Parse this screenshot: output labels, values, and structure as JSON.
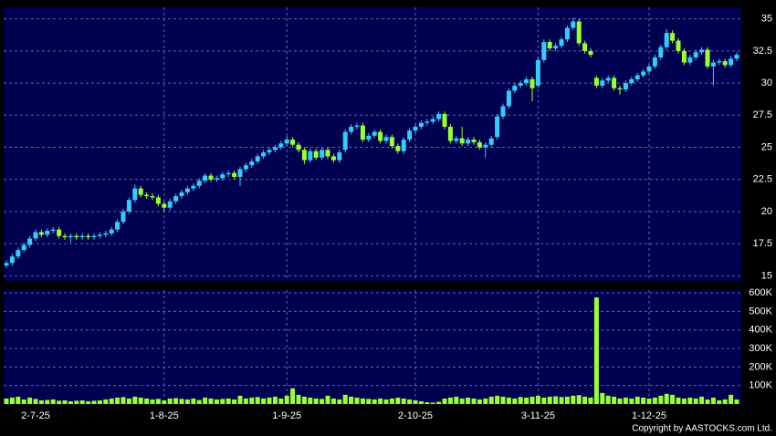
{
  "chart_data": [
    {
      "type": "candlestick",
      "categories": [
        null,
        null,
        null,
        null,
        null,
        "2-7-25",
        null,
        null,
        null,
        null,
        null,
        null,
        null,
        null,
        null,
        null,
        null,
        null,
        null,
        null,
        null,
        null,
        null,
        null,
        null,
        null,
        null,
        "1-8-25",
        null,
        null,
        null,
        null,
        null,
        null,
        null,
        null,
        null,
        null,
        null,
        null,
        null,
        null,
        null,
        null,
        null,
        null,
        null,
        null,
        "1-9-25",
        null,
        null,
        null,
        null,
        null,
        null,
        null,
        null,
        null,
        null,
        null,
        null,
        null,
        null,
        null,
        null,
        null,
        null,
        null,
        null,
        null,
        "2-10-25",
        null,
        null,
        null,
        null,
        null,
        null,
        null,
        null,
        null,
        null,
        null,
        null,
        null,
        null,
        null,
        null,
        null,
        null,
        null,
        null,
        "3-11-25",
        null,
        null,
        null,
        null,
        null,
        null,
        null,
        null,
        null,
        null,
        null,
        null,
        null,
        null,
        null,
        null,
        null,
        null,
        "1-12-25",
        null,
        null,
        null,
        null,
        null,
        null,
        null,
        null,
        null,
        null,
        null,
        null,
        null,
        null,
        null
      ],
      "open": [
        15.8,
        16.0,
        16.5,
        17.0,
        17.4,
        17.9,
        18.4,
        18.2,
        18.5,
        18.6,
        18.1,
        18.0,
        18.1,
        18.0,
        18.1,
        18.0,
        18.1,
        18.2,
        18.3,
        18.6,
        19.2,
        20.0,
        20.9,
        21.8,
        21.3,
        21.2,
        21.1,
        20.6,
        20.3,
        20.8,
        21.2,
        21.5,
        21.8,
        22.0,
        22.4,
        22.8,
        22.5,
        22.6,
        22.9,
        23.0,
        22.7,
        23.3,
        23.6,
        23.9,
        24.3,
        24.6,
        24.8,
        25.0,
        25.3,
        25.6,
        25.2,
        24.8,
        24.0,
        24.7,
        24.2,
        24.8,
        24.3,
        24.0,
        24.8,
        26.2,
        26.6,
        26.7,
        25.6,
        25.9,
        26.2,
        25.5,
        25.8,
        25.1,
        24.7,
        25.6,
        26.3,
        26.6,
        26.9,
        27.0,
        27.2,
        27.6,
        26.6,
        25.5,
        25.7,
        25.3,
        25.6,
        25.4,
        25.0,
        25.2,
        25.8,
        27.4,
        28.2,
        29.4,
        29.8,
        30.0,
        30.3,
        29.8,
        31.8,
        33.2,
        32.7,
        32.9,
        33.4,
        34.3,
        34.8,
        33.1,
        32.5,
        30.4,
        29.8,
        30.2,
        30.4,
        29.6,
        29.5,
        30.0,
        30.3,
        30.6,
        30.9,
        31.3,
        32.0,
        32.8,
        33.9,
        33.3,
        32.5,
        31.6,
        32.0,
        32.4,
        32.6,
        31.3,
        31.6,
        31.7,
        31.4,
        31.9
      ],
      "high": [
        16.2,
        16.7,
        17.2,
        17.6,
        18.1,
        18.6,
        18.6,
        18.7,
        18.8,
        18.8,
        18.3,
        18.3,
        18.3,
        18.3,
        18.3,
        18.3,
        18.4,
        18.5,
        18.8,
        19.4,
        20.2,
        21.1,
        22.1,
        22.0,
        21.5,
        21.4,
        21.3,
        20.8,
        21.0,
        21.4,
        21.7,
        22.0,
        22.2,
        22.6,
        23.0,
        23.0,
        22.8,
        23.1,
        23.2,
        23.2,
        23.5,
        23.8,
        24.1,
        24.5,
        24.8,
        25.0,
        25.2,
        25.5,
        25.9,
        25.8,
        25.4,
        25.0,
        24.9,
        24.9,
        25.0,
        25.0,
        24.5,
        24.8,
        26.4,
        26.8,
        26.9,
        26.9,
        26.1,
        26.4,
        26.4,
        26.0,
        26.0,
        25.3,
        25.8,
        26.5,
        26.8,
        27.1,
        27.2,
        27.4,
        27.8,
        27.8,
        26.8,
        25.9,
        26.6,
        25.8,
        25.8,
        25.6,
        25.4,
        25.9,
        27.6,
        28.4,
        29.6,
        30.0,
        30.2,
        30.5,
        30.5,
        32.0,
        33.4,
        33.4,
        33.1,
        33.6,
        34.5,
        35.1,
        35.0,
        33.3,
        32.7,
        30.6,
        30.4,
        30.6,
        30.6,
        29.8,
        30.2,
        30.5,
        30.8,
        31.1,
        31.5,
        32.2,
        33.0,
        34.2,
        34.1,
        33.5,
        32.7,
        32.2,
        32.6,
        32.8,
        32.8,
        31.8,
        31.9,
        31.9,
        32.1,
        32.4
      ],
      "low": [
        15.6,
        15.8,
        16.3,
        16.8,
        17.2,
        17.7,
        18.0,
        18.0,
        18.3,
        17.9,
        17.8,
        17.6,
        17.8,
        17.8,
        17.8,
        17.8,
        17.9,
        18.0,
        18.1,
        18.4,
        19.0,
        19.8,
        20.7,
        21.1,
        21.0,
        20.9,
        20.4,
        20.0,
        20.1,
        20.6,
        21.0,
        21.3,
        21.6,
        21.8,
        22.2,
        22.3,
        22.3,
        22.4,
        22.7,
        22.5,
        22.0,
        23.1,
        23.4,
        23.7,
        24.1,
        24.4,
        24.6,
        24.8,
        25.1,
        25.0,
        24.6,
        23.7,
        23.8,
        24.0,
        24.0,
        24.1,
        23.8,
        23.8,
        24.6,
        26.0,
        26.4,
        25.4,
        25.4,
        25.7,
        25.3,
        25.3,
        24.9,
        24.5,
        24.5,
        25.4,
        26.1,
        26.4,
        26.7,
        26.8,
        27.0,
        26.4,
        25.3,
        25.3,
        25.1,
        25.1,
        25.2,
        24.8,
        24.2,
        25.0,
        25.6,
        27.2,
        28.0,
        29.2,
        29.6,
        29.8,
        28.6,
        29.6,
        31.6,
        32.5,
        32.5,
        32.7,
        33.2,
        34.1,
        32.9,
        32.3,
        32.0,
        29.6,
        29.6,
        30.0,
        29.4,
        29.1,
        29.3,
        29.8,
        30.1,
        30.4,
        30.7,
        31.1,
        31.8,
        32.6,
        33.1,
        32.3,
        31.4,
        31.4,
        31.8,
        32.2,
        31.1,
        29.8,
        31.4,
        31.2,
        31.2,
        31.7
      ],
      "close": [
        16.0,
        16.5,
        17.0,
        17.4,
        17.9,
        18.4,
        18.2,
        18.5,
        18.6,
        18.1,
        18.0,
        18.1,
        18.0,
        18.1,
        18.0,
        18.1,
        18.2,
        18.3,
        18.6,
        19.2,
        20.0,
        20.9,
        21.8,
        21.3,
        21.2,
        21.1,
        20.6,
        20.3,
        20.8,
        21.2,
        21.5,
        21.8,
        22.0,
        22.4,
        22.8,
        22.5,
        22.6,
        22.9,
        23.0,
        22.7,
        23.3,
        23.6,
        23.9,
        24.3,
        24.6,
        24.8,
        25.0,
        25.3,
        25.6,
        25.2,
        24.8,
        24.0,
        24.7,
        24.2,
        24.8,
        24.3,
        24.0,
        24.6,
        26.2,
        26.6,
        26.7,
        25.6,
        25.9,
        26.2,
        25.5,
        25.8,
        25.1,
        24.7,
        25.6,
        26.3,
        26.6,
        26.9,
        27.0,
        27.2,
        27.6,
        26.6,
        25.5,
        25.7,
        25.3,
        25.6,
        25.4,
        25.0,
        25.2,
        25.7,
        27.4,
        28.2,
        29.4,
        29.8,
        30.0,
        30.3,
        29.6,
        31.8,
        33.2,
        32.7,
        32.9,
        33.4,
        34.3,
        34.8,
        33.1,
        32.5,
        32.2,
        29.8,
        30.2,
        30.4,
        29.6,
        29.5,
        30.0,
        30.3,
        30.6,
        30.9,
        31.3,
        32.0,
        32.8,
        33.9,
        33.3,
        32.5,
        31.6,
        32.0,
        32.4,
        32.6,
        31.3,
        31.6,
        31.7,
        31.4,
        31.9,
        32.2
      ],
      "up_color": "#33ccff",
      "down_color": "#99ff33",
      "ylim": [
        14.6,
        35.9
      ],
      "yticks": [
        15,
        17.5,
        20,
        22.5,
        25,
        27.5,
        30,
        32.5,
        35
      ],
      "grid": true
    },
    {
      "type": "bar",
      "values": [
        30000,
        35000,
        40000,
        25000,
        35000,
        28000,
        20000,
        22000,
        25000,
        18000,
        20000,
        15000,
        18000,
        20000,
        15000,
        18000,
        20000,
        25000,
        30000,
        35000,
        38000,
        30000,
        40000,
        35000,
        30000,
        25000,
        28000,
        20000,
        30000,
        32000,
        28000,
        25000,
        30000,
        22000,
        35000,
        30000,
        25000,
        28000,
        30000,
        25000,
        45000,
        30000,
        35000,
        38000,
        30000,
        35000,
        40000,
        30000,
        45000,
        85000,
        50000,
        40000,
        35000,
        30000,
        28000,
        45000,
        30000,
        25000,
        50000,
        40000,
        35000,
        30000,
        28000,
        25000,
        30000,
        25000,
        30000,
        35000,
        30000,
        25000,
        20000,
        15000,
        10000,
        8000,
        12000,
        30000,
        35000,
        40000,
        30000,
        35000,
        30000,
        25000,
        30000,
        40000,
        45000,
        40000,
        35000,
        30000,
        38000,
        35000,
        40000,
        45000,
        35000,
        40000,
        42000,
        38000,
        40000,
        45000,
        48000,
        40000,
        35000,
        575000,
        60000,
        45000,
        40000,
        30000,
        35000,
        30000,
        40000,
        35000,
        30000,
        35000,
        45000,
        55000,
        50000,
        35000,
        30000,
        35000,
        30000,
        40000,
        25000,
        35000,
        20000,
        25000,
        50000,
        25000
      ],
      "color": "#99ff33",
      "ylim": [
        0,
        615000
      ],
      "yticks": [
        {
          "value": 100000,
          "label": "100K"
        },
        {
          "value": 200000,
          "label": "200K"
        },
        {
          "value": 300000,
          "label": "300K"
        },
        {
          "value": 400000,
          "label": "400K"
        },
        {
          "value": 500000,
          "label": "500K"
        },
        {
          "value": 600000,
          "label": "600K"
        }
      ],
      "grid": true
    }
  ],
  "copyright": "Copyright by AASTOCKS.com Ltd."
}
